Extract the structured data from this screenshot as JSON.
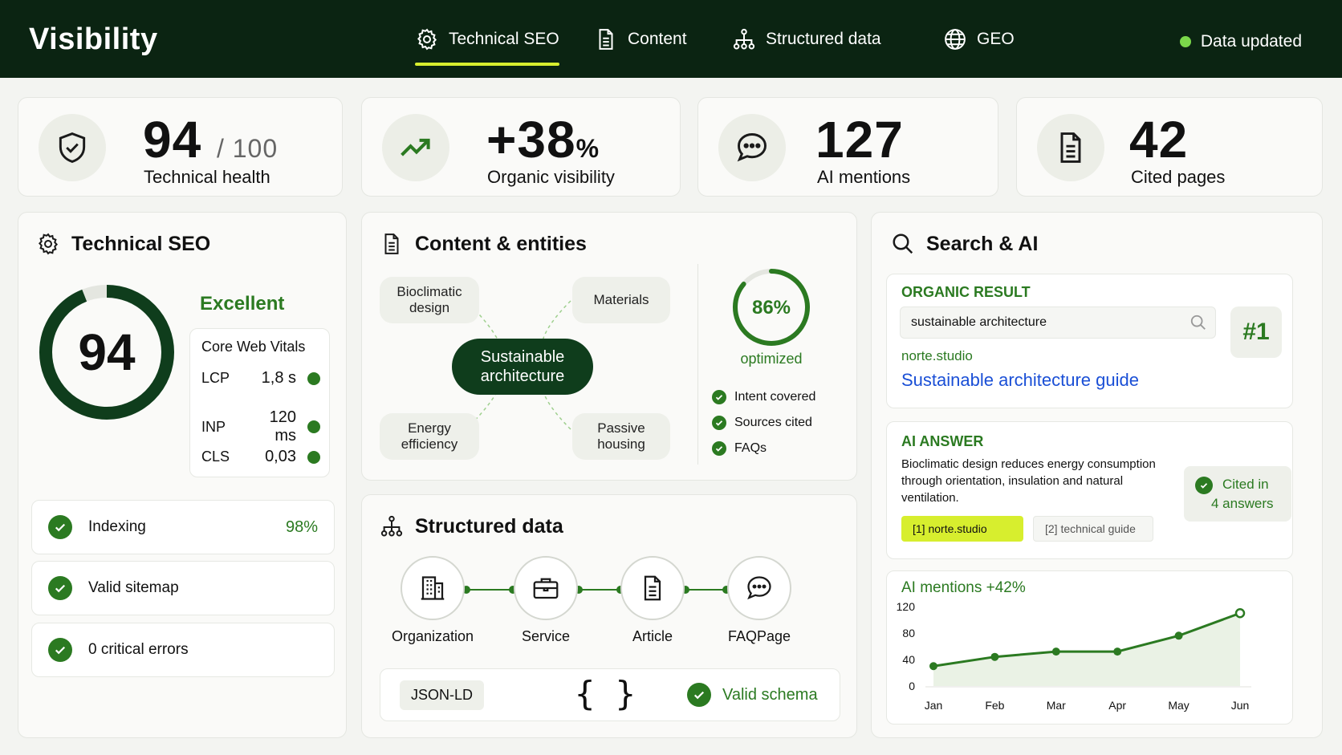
{
  "header": {
    "brand": "Visibility",
    "nav": [
      {
        "label": "Technical SEO",
        "icon": "gear-icon",
        "active": true
      },
      {
        "label": "Content",
        "icon": "document-icon"
      },
      {
        "label": "Structured data",
        "icon": "sitemap-icon"
      },
      {
        "label": "GEO",
        "icon": "globe-icon"
      }
    ],
    "status": "Data updated",
    "status_color": "#7bd84a"
  },
  "kpis": [
    {
      "value": "94",
      "suffix": "/ 100",
      "label": "Technical health",
      "icon": "shield-check-icon"
    },
    {
      "value": "+38",
      "suffix": "%",
      "label": "Organic visibility",
      "icon": "trend-up-icon"
    },
    {
      "value": "127",
      "label": "AI mentions",
      "icon": "chat-bubble-icon"
    },
    {
      "value": "42",
      "label": "Cited pages",
      "icon": "document-icon"
    }
  ],
  "technical": {
    "title": "Technical SEO",
    "score": "94",
    "score_fraction": 0.94,
    "rating": "Excellent",
    "cwv_title": "Core Web Vitals",
    "cwv": [
      {
        "name": "LCP",
        "value": "1,8 s"
      },
      {
        "name": "INP",
        "value": "120 ms"
      },
      {
        "name": "CLS",
        "value": "0,03"
      }
    ],
    "checks": [
      {
        "label": "Indexing",
        "value": "98%"
      },
      {
        "label": "Valid sitemap",
        "value": ""
      },
      {
        "label": "0 critical errors",
        "value": ""
      }
    ]
  },
  "content": {
    "title": "Content & entities",
    "center": "Sustainable architecture",
    "entities": [
      "Bioclimatic design",
      "Materials",
      "Energy efficiency",
      "Passive housing"
    ],
    "optimized_pct": "86%",
    "optimized_fraction": 0.86,
    "optimized_label": "optimized",
    "checks": [
      "Intent covered",
      "Sources cited",
      "FAQs"
    ]
  },
  "structured": {
    "title": "Structured data",
    "types": [
      {
        "label": "Organization",
        "icon": "building-icon"
      },
      {
        "label": "Service",
        "icon": "briefcase-icon"
      },
      {
        "label": "Article",
        "icon": "document-icon"
      },
      {
        "label": "FAQPage",
        "icon": "chat-bubble-icon"
      }
    ],
    "format": "JSON-LD",
    "braces": "{ }",
    "status": "Valid schema"
  },
  "search": {
    "title": "Search & AI",
    "organic": {
      "heading": "ORGANIC RESULT",
      "query": "sustainable architecture",
      "rank": "#1",
      "domain": "norte.studio",
      "link": "Sustainable architecture guide"
    },
    "ai": {
      "heading": "AI ANSWER",
      "text": "Bioclimatic design reduces energy consumption through orientation, insulation and natural ventilation.",
      "citations": [
        "[1]  norte.studio",
        "[2]  technical guide"
      ],
      "cited_line1": "Cited in",
      "cited_line2": "4 answers"
    }
  },
  "chart_data": {
    "type": "area",
    "title": "AI mentions +42%",
    "categories": [
      "Jan",
      "Feb",
      "Mar",
      "Apr",
      "May",
      "Jun"
    ],
    "values": [
      30,
      44,
      52,
      52,
      76,
      110
    ],
    "yticks": [
      0,
      40,
      80,
      120
    ],
    "ylim": [
      0,
      120
    ],
    "color": "#2b7a21"
  }
}
